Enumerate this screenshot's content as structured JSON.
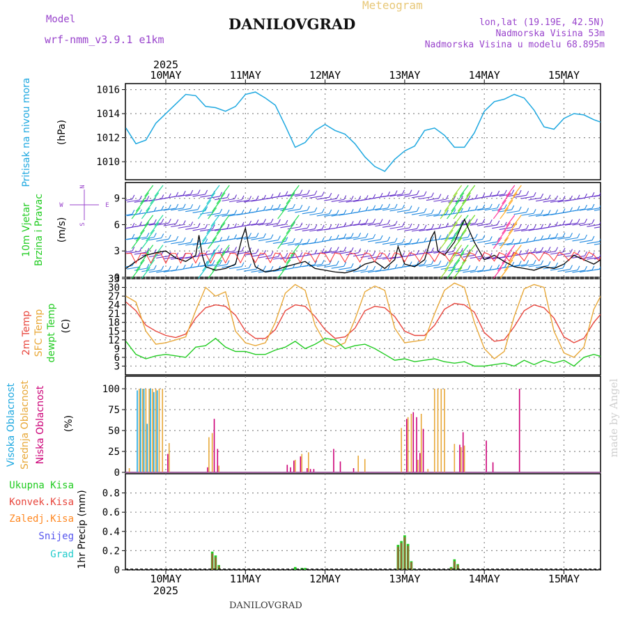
{
  "header": {
    "model_label": "Model",
    "model_name": "wrf-nmm_v3.9.1 e1km",
    "title": "Meteogram",
    "station": "DANILOVGRAD",
    "lonlat": "lon,lat (19.19E, 42.5N)",
    "altitude": "Nadmorska Visina 53m",
    "model_altitude": "Nadmorska Visina u modelu 68.895m",
    "footer_station": "DANILOVGRAD",
    "watermark": "made by Angel"
  },
  "time_axis": {
    "year": "2025",
    "days": [
      "10MAY",
      "11MAY",
      "12MAY",
      "13MAY",
      "14MAY",
      "15MAY"
    ],
    "start_hour": 0,
    "end_hour": 144
  },
  "colors": {
    "pressure": "#1ea8e0",
    "temp2m": "#e8453c",
    "sfc_temp": "#e8a838",
    "dewpt": "#22cc22",
    "cloud_high": "#1ea8e0",
    "cloud_mid": "#e8a838",
    "cloud_low": "#cc0077",
    "rain_total": "#22cc22",
    "rain_conv": "#e8453c",
    "rain_frz": "#ff8822",
    "snow": "#5555ee",
    "graupel": "#22cccc",
    "wind_speed": "#000000",
    "gust": "#ff3333",
    "compass": "#9944cc"
  },
  "panels": {
    "pressure": {
      "label": "Pritisak na nivou mora",
      "unit": "(hPa)",
      "ticks": [
        "1010",
        "1012",
        "1014",
        "1016"
      ]
    },
    "wind": {
      "label1": "10m Vjetar",
      "label2": "Brzina i Pravac",
      "unit": "(m/s)",
      "ticks": [
        "0",
        "3",
        "6",
        "9"
      ],
      "compass_n": "N",
      "compass_s": "S",
      "compass_w": "W",
      "compass_e": "E"
    },
    "temp": {
      "label1": "2m Temp",
      "label2": "SFC Temp",
      "label3": "dewpt Temp",
      "unit": "(C)",
      "ticks": [
        "3",
        "6",
        "9",
        "12",
        "15",
        "18",
        "21",
        "24",
        "27",
        "30",
        "33"
      ]
    },
    "cloud": {
      "label1": "Visoka Oblacnost",
      "label2": "Srednja Oblacnost",
      "label3": "Niska Oblacnost",
      "unit": "(%)",
      "ticks": [
        "0",
        "25",
        "50",
        "75",
        "100"
      ]
    },
    "precip": {
      "legend": [
        "Ukupna Kisa",
        "Konvek.Kisa",
        "Zaledj.Kisa",
        "Snijeg",
        "Grad"
      ],
      "ylabel": "1hr Precip (mm)",
      "ticks": [
        "0",
        "0.2",
        "0.4",
        "0.6",
        "0.8"
      ]
    }
  },
  "chart_data": [
    {
      "type": "line",
      "title": "",
      "ylabel": "Pritisak na nivou mora (hPa)",
      "ylim": [
        1008.5,
        1016.5
      ],
      "x_unit": "hours from 10MAY 00",
      "series": [
        {
          "name": "Pritisak na nivou mora",
          "x": [
            -12,
            -9,
            -6,
            -3,
            0,
            3,
            6,
            9,
            12,
            15,
            18,
            21,
            24,
            27,
            30,
            33,
            36,
            39,
            42,
            45,
            48,
            51,
            54,
            57,
            60,
            63,
            66,
            69,
            72,
            75,
            78,
            81,
            84,
            87,
            90,
            93,
            96,
            99,
            102,
            105,
            108,
            111,
            114,
            117,
            120,
            123,
            126,
            129,
            132,
            135,
            138,
            141,
            144
          ],
          "values": [
            1012.8,
            1011.5,
            1011.8,
            1013.2,
            1014.0,
            1014.8,
            1015.6,
            1015.5,
            1014.6,
            1014.5,
            1014.2,
            1014.6,
            1015.6,
            1015.8,
            1015.3,
            1014.7,
            1013.0,
            1011.2,
            1011.6,
            1012.6,
            1013.1,
            1012.6,
            1012.3,
            1011.5,
            1010.4,
            1009.6,
            1009.2,
            1010.2,
            1010.9,
            1011.3,
            1012.6,
            1012.8,
            1012.2,
            1011.2,
            1011.2,
            1012.4,
            1014.2,
            1015.0,
            1015.2,
            1015.6,
            1015.3,
            1014.3,
            1012.9,
            1012.7,
            1013.6,
            1014.0,
            1013.9,
            1013.5,
            1013.2,
            1013.0,
            1012.5,
            1011.3,
            1010.0
          ]
        }
      ]
    },
    {
      "type": "line",
      "title": "",
      "ylabel": "10m Vjetar Brzina i Pravac (m/s)",
      "ylim": [
        0,
        10.8
      ],
      "x_unit": "hours from 10MAY 00",
      "series": [
        {
          "name": "Brzina",
          "x": [
            -12,
            -9,
            -6,
            -3,
            0,
            3,
            6,
            9,
            10,
            11,
            12,
            15,
            18,
            21,
            23,
            24,
            25,
            27,
            30,
            33,
            36,
            39,
            42,
            45,
            48,
            51,
            54,
            57,
            60,
            63,
            66,
            69,
            70,
            71,
            72,
            75,
            78,
            80,
            81,
            82,
            84,
            87,
            90,
            93,
            96,
            99,
            102,
            105,
            108,
            111,
            114,
            117,
            120,
            123,
            126,
            129,
            132,
            135,
            138,
            141,
            144
          ],
          "values": [
            1.0,
            1.8,
            2.5,
            2.8,
            3.0,
            2.2,
            1.8,
            2.5,
            4.8,
            2.5,
            1.2,
            0.8,
            1.0,
            1.5,
            4.5,
            5.6,
            3.5,
            1.2,
            0.6,
            0.8,
            1.2,
            1.5,
            1.8,
            1.0,
            0.8,
            0.6,
            0.5,
            0.8,
            1.5,
            1.8,
            1.0,
            2.0,
            3.5,
            2.5,
            1.5,
            1.2,
            2.0,
            4.5,
            5.2,
            3.0,
            2.5,
            4.0,
            6.6,
            4.0,
            2.0,
            2.5,
            1.8,
            1.2,
            1.0,
            0.8,
            1.2,
            1.0,
            1.5,
            2.5,
            2.0,
            1.5,
            2.2,
            3.2,
            3.0,
            2.2,
            2.8
          ]
        }
      ]
    },
    {
      "type": "line",
      "title": "",
      "ylabel": "Temp (C)",
      "ylim": [
        0,
        33
      ],
      "x_unit": "hours from 10MAY 00",
      "series": [
        {
          "name": "2m Temp",
          "x": [
            -12,
            -9,
            -6,
            -3,
            0,
            3,
            6,
            9,
            12,
            15,
            18,
            21,
            24,
            27,
            30,
            33,
            36,
            39,
            42,
            45,
            48,
            51,
            54,
            57,
            60,
            63,
            66,
            69,
            72,
            75,
            78,
            81,
            84,
            87,
            90,
            93,
            96,
            99,
            102,
            105,
            108,
            111,
            114,
            117,
            120,
            123,
            126,
            129,
            132,
            135,
            138,
            141,
            144
          ],
          "values": [
            25.0,
            22.0,
            17.0,
            15.0,
            13.5,
            12.8,
            14.0,
            19.5,
            23.0,
            24.0,
            23.5,
            20.5,
            15.0,
            12.5,
            12.5,
            15.5,
            22.0,
            24.0,
            23.5,
            20.0,
            15.5,
            12.5,
            13.0,
            16.0,
            22.0,
            23.5,
            23.0,
            20.0,
            15.0,
            13.5,
            13.5,
            17.0,
            22.5,
            24.5,
            24.0,
            21.5,
            14.5,
            11.5,
            12.0,
            16.5,
            22.0,
            24.0,
            23.0,
            19.5,
            13.0,
            11.0,
            12.5,
            18.0,
            22.0,
            23.5,
            23.0,
            24.0,
            25.0
          ]
        },
        {
          "name": "SFC Temp",
          "x": [
            -12,
            -9,
            -6,
            -3,
            0,
            3,
            6,
            9,
            12,
            15,
            18,
            21,
            24,
            27,
            30,
            33,
            36,
            39,
            42,
            45,
            48,
            51,
            54,
            57,
            60,
            63,
            66,
            69,
            72,
            75,
            78,
            81,
            84,
            87,
            90,
            93,
            96,
            99,
            102,
            105,
            108,
            111,
            114,
            117,
            120,
            123,
            126,
            129,
            132,
            135,
            138,
            141,
            144
          ],
          "values": [
            27.0,
            25.0,
            15.0,
            10.5,
            11.0,
            12.0,
            13.0,
            22.0,
            30.0,
            27.0,
            28.5,
            15.0,
            11.0,
            10.0,
            11.0,
            18.0,
            28.0,
            31.0,
            29.0,
            17.0,
            11.0,
            9.5,
            11.0,
            19.0,
            28.5,
            30.5,
            29.0,
            16.0,
            11.0,
            11.5,
            12.0,
            21.0,
            29.0,
            31.5,
            30.0,
            18.0,
            9.0,
            5.5,
            8.0,
            20.0,
            29.5,
            31.0,
            30.0,
            15.0,
            7.5,
            6.0,
            9.5,
            22.5,
            29.0,
            31.0,
            29.5,
            31.5,
            32.0
          ]
        },
        {
          "name": "dewpt Temp",
          "x": [
            -12,
            -9,
            -6,
            -3,
            0,
            3,
            6,
            9,
            12,
            15,
            18,
            21,
            24,
            27,
            30,
            33,
            36,
            39,
            42,
            45,
            48,
            51,
            54,
            57,
            60,
            63,
            66,
            69,
            72,
            75,
            78,
            81,
            84,
            87,
            90,
            93,
            96,
            99,
            102,
            105,
            108,
            111,
            114,
            117,
            120,
            123,
            126,
            129,
            132,
            135,
            138,
            141,
            144
          ],
          "values": [
            11.5,
            7.0,
            5.5,
            6.5,
            7.0,
            6.5,
            6.0,
            9.5,
            10.0,
            12.5,
            9.5,
            8.0,
            8.0,
            7.0,
            7.0,
            8.5,
            9.5,
            11.5,
            9.0,
            10.5,
            12.5,
            12.0,
            9.0,
            10.0,
            10.5,
            9.0,
            7.0,
            5.0,
            5.5,
            4.5,
            5.0,
            5.5,
            4.5,
            4.0,
            4.5,
            3.0,
            3.0,
            3.5,
            4.0,
            3.0,
            5.0,
            3.5,
            5.0,
            4.0,
            5.0,
            3.0,
            6.0,
            7.0,
            6.0,
            6.5,
            8.5,
            7.5,
            6.0
          ]
        }
      ]
    },
    {
      "type": "bar",
      "title": "",
      "ylabel": "Oblacnost (%)",
      "ylim": [
        0,
        100
      ],
      "x_unit": "hours from 10MAY 00",
      "series": [
        {
          "name": "Visoka Oblacnost",
          "x": [
            -8,
            -7,
            -6,
            -5,
            -4,
            -3,
            -2
          ],
          "values": [
            98,
            100,
            100,
            58,
            100,
            96,
            98
          ]
        },
        {
          "name": "Srednja Oblacnost",
          "x": [
            -11,
            -8,
            -7,
            -6,
            -5,
            -4,
            -3,
            -2,
            -1,
            1,
            13,
            14,
            16,
            39,
            41,
            43,
            58,
            60,
            71,
            73,
            74,
            76,
            77,
            79,
            81,
            82,
            83,
            84,
            87,
            89,
            90
          ],
          "values": [
            5,
            100,
            100,
            100,
            100,
            100,
            100,
            100,
            100,
            35,
            42,
            47,
            8,
            15,
            22,
            24,
            20,
            16,
            53,
            66,
            70,
            15,
            70,
            4,
            100,
            100,
            100,
            100,
            34,
            30,
            32
          ]
        },
        {
          "name": "Niska Oblacnost",
          "x": [
            0,
            12,
            14,
            15,
            36,
            37,
            38,
            40,
            42,
            43,
            44,
            50,
            52,
            56,
            72,
            74,
            75,
            76,
            77,
            88,
            89,
            96,
            98,
            106
          ],
          "values": [
            22,
            6,
            64,
            28,
            9,
            6,
            14,
            19,
            5,
            4,
            4,
            28,
            13,
            5,
            64,
            72,
            66,
            23,
            52,
            33,
            48,
            38,
            12,
            100
          ]
        }
      ]
    },
    {
      "type": "bar",
      "title": "",
      "ylabel": "1hr Precip (mm)",
      "ylim": [
        0,
        1.0
      ],
      "x_unit": "hours from 10MAY 00",
      "series": [
        {
          "name": "Ukupna Kisa",
          "x": [
            14,
            15,
            16,
            39,
            41,
            42,
            70,
            71,
            72,
            73,
            74,
            75,
            86,
            87,
            88
          ],
          "values": [
            0.19,
            0.15,
            0.05,
            0.03,
            0.02,
            0.02,
            0.26,
            0.3,
            0.36,
            0.27,
            0.09,
            0.01,
            0.03,
            0.11,
            0.06
          ]
        },
        {
          "name": "Konvek.Kisa",
          "x": [
            14,
            15,
            16,
            70,
            71,
            72,
            73,
            74,
            86,
            87,
            88
          ],
          "values": [
            0.17,
            0.13,
            0.04,
            0.24,
            0.28,
            0.34,
            0.25,
            0.08,
            0.02,
            0.09,
            0.05
          ]
        }
      ]
    }
  ]
}
